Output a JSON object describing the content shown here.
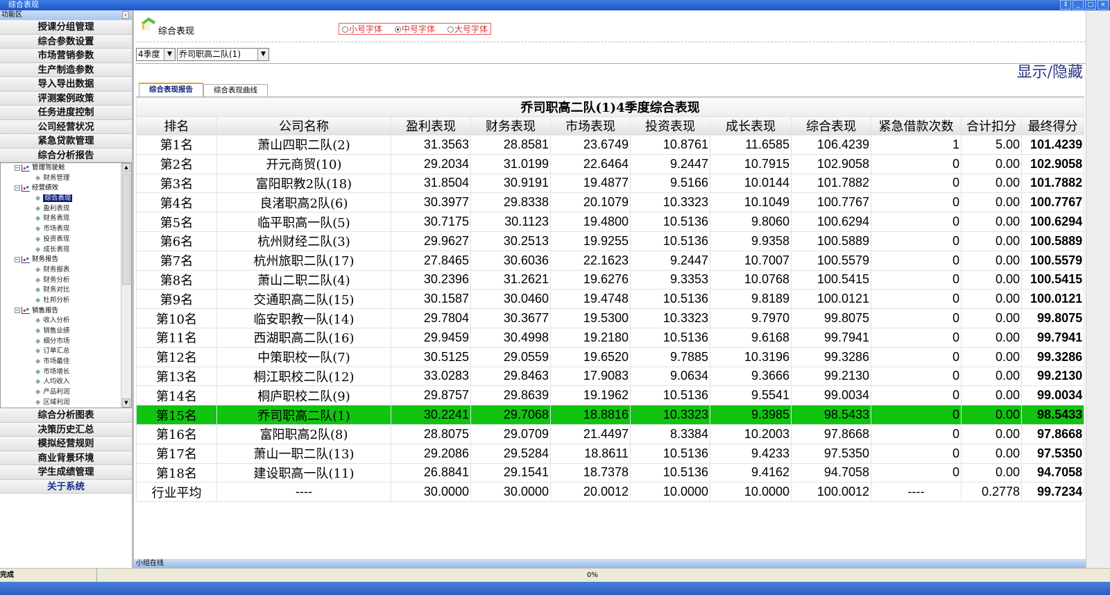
{
  "window": {
    "title": "综合表现",
    "controls": [
      "scroll",
      "minimize",
      "maximize",
      "close"
    ]
  },
  "sidebar": {
    "header": "功能区",
    "top_items": [
      "授课分组管理",
      "综合参数设置",
      "市场营销参数",
      "生产制造参数",
      "导入导出数据",
      "评测案例政策",
      "任务进度控制",
      "公司经营状况",
      "紧急贷款管理",
      "综合分析报告"
    ],
    "tree": [
      {
        "label": "管理驾驶舱",
        "children": [
          "财务管理"
        ]
      },
      {
        "label": "经营绩效",
        "children": [
          "综合表现",
          "盈利表现",
          "财务表现",
          "市场表现",
          "投资表现",
          "成长表现"
        ]
      },
      {
        "label": "财务报告",
        "children": [
          "财务报表",
          "财务分析",
          "财务对比",
          "杜邦分析"
        ]
      },
      {
        "label": "销售报告",
        "children": [
          "收入分析",
          "销售业绩",
          "细分市场",
          "订单汇总",
          "市场最佳",
          "市场增长",
          "人均收入",
          "产品利润",
          "区域利润"
        ]
      }
    ],
    "tree_selected": "综合表现",
    "bottom_items": [
      "综合分析图表",
      "决策历史汇总",
      "模拟经营规则",
      "商业背景环境",
      "学生成绩管理",
      "关于系统"
    ]
  },
  "main": {
    "title": "综合表现",
    "font_size_options": [
      "小号字体",
      "中号字体",
      "大号字体"
    ],
    "font_size_selected": "中号字体",
    "quarter_select": "4季度",
    "team_select": "乔司职高二队(1)",
    "show_hide": "显示/隐藏",
    "tabs": [
      {
        "label": "综合表现报告",
        "active": true
      },
      {
        "label": "综合表现曲线",
        "active": false
      }
    ]
  },
  "table": {
    "caption": "乔司职高二队(1)4季度综合表现",
    "columns": [
      "排名",
      "公司名称",
      "盈利表现",
      "财务表现",
      "市场表现",
      "投资表现",
      "成长表现",
      "综合表现",
      "紧急借款次数",
      "合计扣分",
      "最终得分"
    ],
    "highlight_color": "#10c410",
    "rows": [
      [
        "第1名",
        "萧山四职二队(2)",
        "31.3563",
        "28.8581",
        "23.6749",
        "10.8761",
        "11.6585",
        "106.4239",
        "1",
        "5.00",
        "101.4239"
      ],
      [
        "第2名",
        "开元商贸(10)",
        "29.2034",
        "31.0199",
        "22.6464",
        "9.2447",
        "10.7915",
        "102.9058",
        "0",
        "0.00",
        "102.9058"
      ],
      [
        "第3名",
        "富阳职教2队(18)",
        "31.8504",
        "30.9191",
        "19.4877",
        "9.5166",
        "10.0144",
        "101.7882",
        "0",
        "0.00",
        "101.7882"
      ],
      [
        "第4名",
        "良渚职高2队(6)",
        "30.3977",
        "29.8338",
        "20.1079",
        "10.3323",
        "10.1049",
        "100.7767",
        "0",
        "0.00",
        "100.7767"
      ],
      [
        "第5名",
        "临平职高一队(5)",
        "30.7175",
        "30.1123",
        "19.4800",
        "10.5136",
        "9.8060",
        "100.6294",
        "0",
        "0.00",
        "100.6294"
      ],
      [
        "第6名",
        "杭州财经二队(3)",
        "29.9627",
        "30.2513",
        "19.9255",
        "10.5136",
        "9.9358",
        "100.5889",
        "0",
        "0.00",
        "100.5889"
      ],
      [
        "第7名",
        "杭州旅职二队(17)",
        "27.8465",
        "30.6036",
        "22.1623",
        "9.2447",
        "10.7007",
        "100.5579",
        "0",
        "0.00",
        "100.5579"
      ],
      [
        "第8名",
        "萧山二职二队(4)",
        "30.2396",
        "31.2621",
        "19.6276",
        "9.3353",
        "10.0768",
        "100.5415",
        "0",
        "0.00",
        "100.5415"
      ],
      [
        "第9名",
        "交通职高二队(15)",
        "30.1587",
        "30.0460",
        "19.4748",
        "10.5136",
        "9.8189",
        "100.0121",
        "0",
        "0.00",
        "100.0121"
      ],
      [
        "第10名",
        "临安职教一队(14)",
        "29.7804",
        "30.3677",
        "19.5300",
        "10.3323",
        "9.7970",
        "99.8075",
        "0",
        "0.00",
        "99.8075"
      ],
      [
        "第11名",
        "西湖职高二队(16)",
        "29.9459",
        "30.4998",
        "19.2180",
        "10.5136",
        "9.6168",
        "99.7941",
        "0",
        "0.00",
        "99.7941"
      ],
      [
        "第12名",
        "中策职校一队(7)",
        "30.5125",
        "29.0559",
        "19.6520",
        "9.7885",
        "10.3196",
        "99.3286",
        "0",
        "0.00",
        "99.3286"
      ],
      [
        "第13名",
        "桐江职校二队(12)",
        "33.0283",
        "29.8463",
        "17.9083",
        "9.0634",
        "9.3666",
        "99.2130",
        "0",
        "0.00",
        "99.2130"
      ],
      [
        "第14名",
        "桐庐职校二队(9)",
        "29.8757",
        "29.8639",
        "19.1962",
        "10.5136",
        "9.5541",
        "99.0034",
        "0",
        "0.00",
        "99.0034"
      ],
      [
        "第15名",
        "乔司职高二队(1)",
        "30.2241",
        "29.7068",
        "18.8816",
        "10.3323",
        "9.3985",
        "98.5433",
        "0",
        "0.00",
        "98.5433"
      ],
      [
        "第16名",
        "富阳职高2队(8)",
        "28.8075",
        "29.0709",
        "21.4497",
        "8.3384",
        "10.2003",
        "97.8668",
        "0",
        "0.00",
        "97.8668"
      ],
      [
        "第17名",
        "萧山一职二队(13)",
        "29.2086",
        "29.5284",
        "18.8611",
        "10.5136",
        "9.4233",
        "97.5350",
        "0",
        "0.00",
        "97.5350"
      ],
      [
        "第18名",
        "建设职高一队(11)",
        "26.8841",
        "29.1541",
        "18.7378",
        "10.5136",
        "9.4162",
        "94.7058",
        "0",
        "0.00",
        "94.7058"
      ],
      [
        "行业平均",
        "----",
        "30.0000",
        "30.0000",
        "20.0012",
        "10.0000",
        "10.0000",
        "100.0012",
        "----",
        "0.2778",
        "99.7234"
      ]
    ],
    "highlight_row": 14
  },
  "footer": {
    "online_label": "小组在线",
    "status": "完成",
    "progress": "0%"
  }
}
